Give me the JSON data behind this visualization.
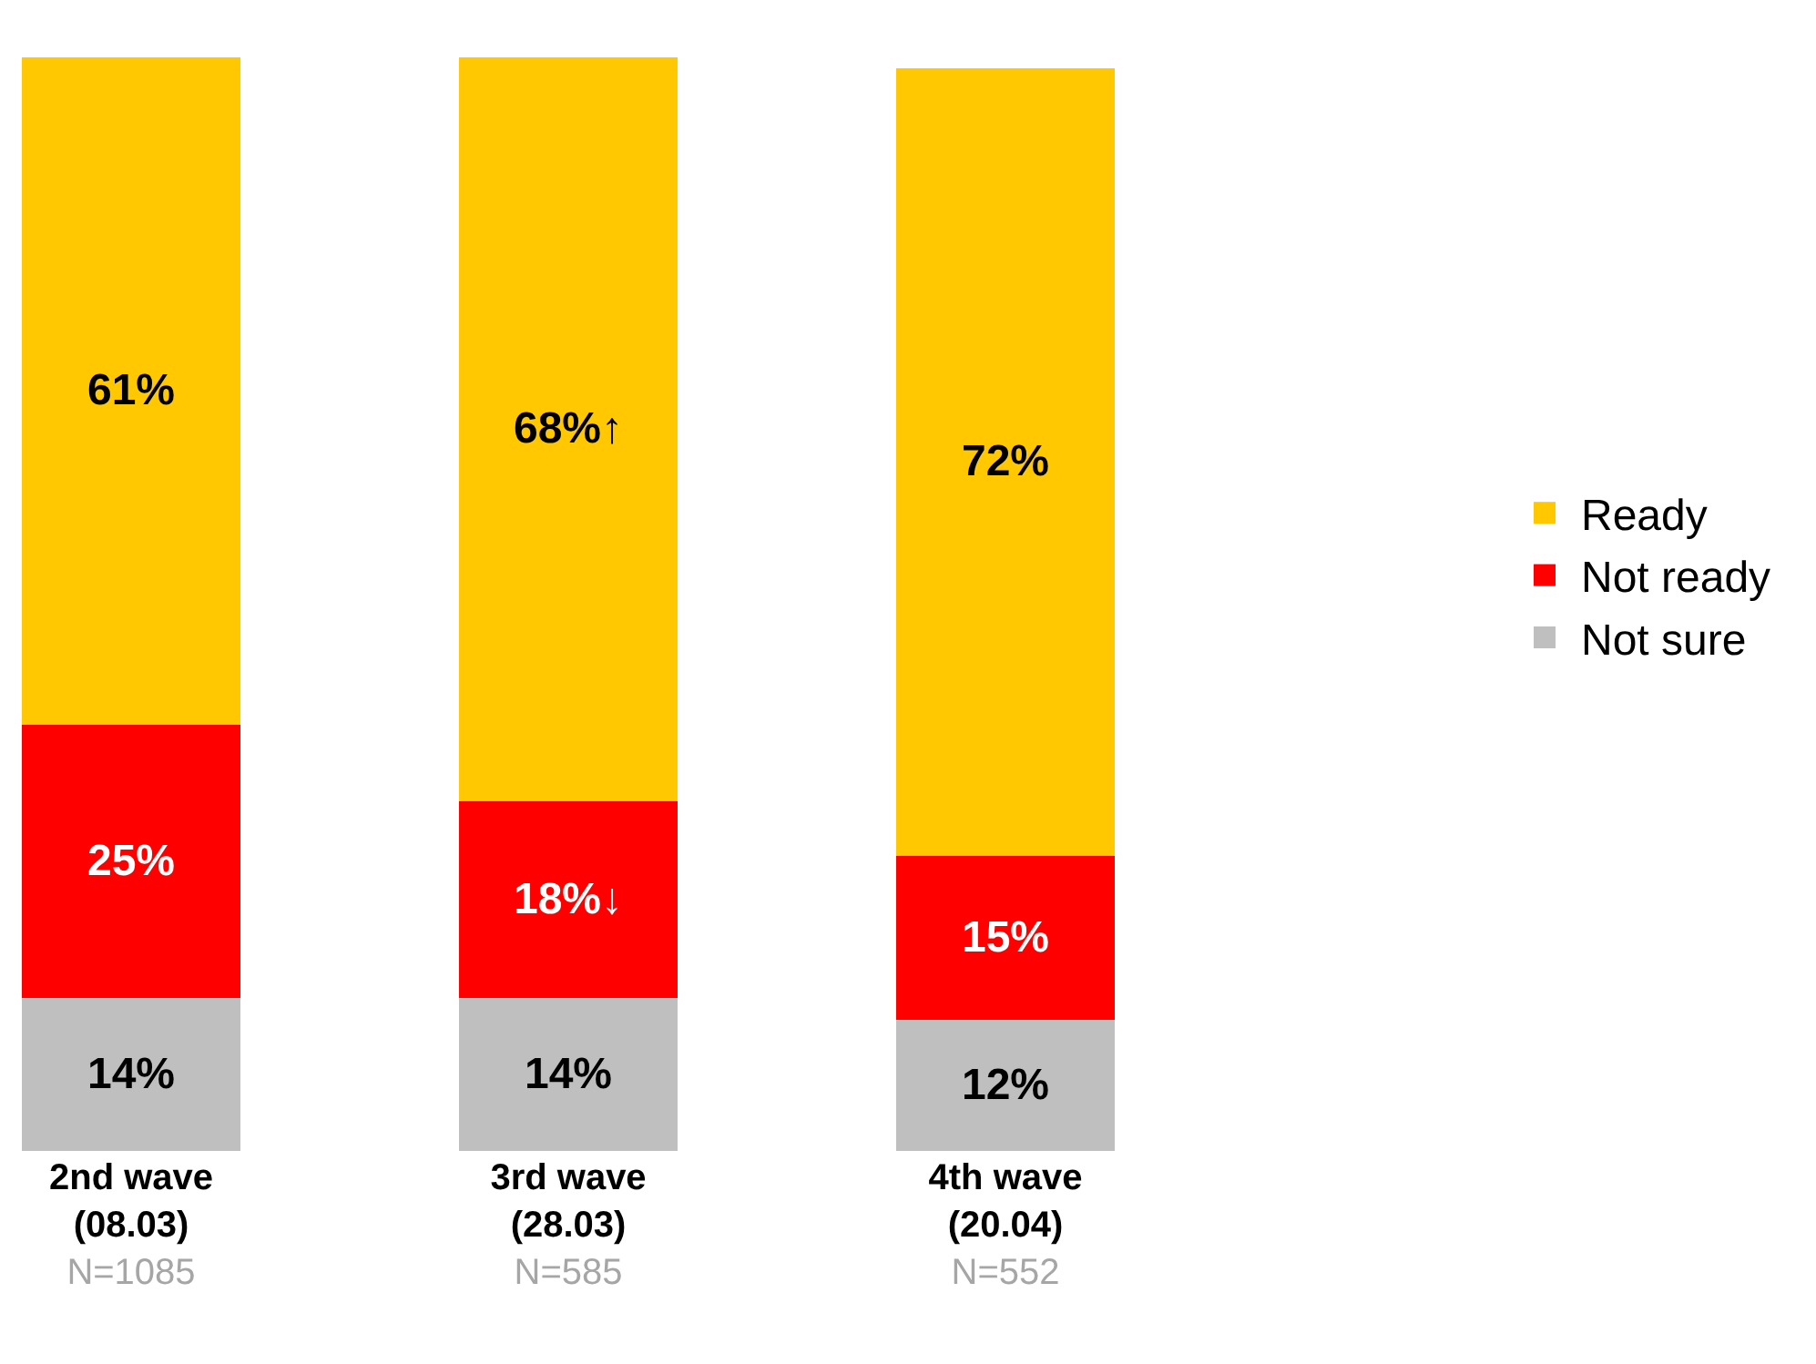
{
  "chart_data": {
    "type": "bar",
    "stacked": true,
    "legend": "right",
    "tick_labels": "x",
    "categories": [
      "2nd wave\n(08.03)\nN=1085",
      "3rd wave\n(28.03)\nN=585",
      "4th wave\n(20.04)\nN=552"
    ],
    "series": [
      {
        "name": "Not sure",
        "color": "#bfbfbf",
        "values": [
          14,
          14,
          12
        ],
        "value_labels": [
          "14%",
          "14%",
          "12%"
        ]
      },
      {
        "name": "Not ready",
        "color": "#ff0000",
        "values": [
          25,
          18,
          15
        ],
        "value_labels": [
          "25%",
          "18%↓",
          "15%"
        ]
      },
      {
        "name": "Ready",
        "color": "#ffc800",
        "values": [
          61,
          68,
          72
        ],
        "value_labels": [
          "61%",
          "68%↑",
          "72%"
        ]
      }
    ]
  }
}
